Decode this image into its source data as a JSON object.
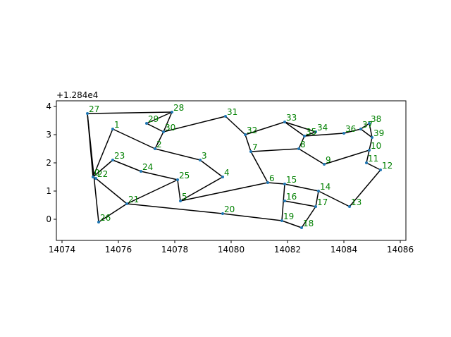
{
  "chart_data": {
    "type": "scatter",
    "title": "",
    "xlabel": "",
    "ylabel": "",
    "y_offset_label": "+1.284e4",
    "xlim": [
      14073.8,
      14086.2
    ],
    "ylim": [
      -0.75,
      4.2
    ],
    "x_ticks": [
      14074,
      14076,
      14078,
      14080,
      14082,
      14084,
      14086
    ],
    "y_ticks": [
      0,
      1,
      2,
      3,
      4
    ],
    "grid": false,
    "node_color": "#1f77b4",
    "label_color": "#008000",
    "edge_color": "#000000",
    "nodes": [
      {
        "id": "0",
        "x": 14075.1,
        "y": 1.5
      },
      {
        "id": "1",
        "x": 14075.8,
        "y": 3.2
      },
      {
        "id": "2",
        "x": 14077.3,
        "y": 2.5
      },
      {
        "id": "3",
        "x": 14078.9,
        "y": 2.1
      },
      {
        "id": "4",
        "x": 14079.7,
        "y": 1.5
      },
      {
        "id": "5",
        "x": 14078.2,
        "y": 0.65
      },
      {
        "id": "6",
        "x": 14081.3,
        "y": 1.3
      },
      {
        "id": "7",
        "x": 14080.7,
        "y": 2.4
      },
      {
        "id": "8",
        "x": 14082.4,
        "y": 2.5
      },
      {
        "id": "9",
        "x": 14083.3,
        "y": 1.95
      },
      {
        "id": "10",
        "x": 14084.9,
        "y": 2.45
      },
      {
        "id": "11",
        "x": 14084.8,
        "y": 2.0
      },
      {
        "id": "12",
        "x": 14085.3,
        "y": 1.75
      },
      {
        "id": "13",
        "x": 14084.2,
        "y": 0.45
      },
      {
        "id": "14",
        "x": 14083.1,
        "y": 1.0
      },
      {
        "id": "15",
        "x": 14081.9,
        "y": 1.25
      },
      {
        "id": "16",
        "x": 14081.9,
        "y": 0.65
      },
      {
        "id": "17",
        "x": 14083.0,
        "y": 0.45
      },
      {
        "id": "18",
        "x": 14082.5,
        "y": -0.3
      },
      {
        "id": "19",
        "x": 14081.8,
        "y": -0.05
      },
      {
        "id": "20",
        "x": 14079.7,
        "y": 0.2
      },
      {
        "id": "21",
        "x": 14076.3,
        "y": 0.55
      },
      {
        "id": "22",
        "x": 14075.2,
        "y": 1.45
      },
      {
        "id": "23",
        "x": 14075.8,
        "y": 2.1
      },
      {
        "id": "24",
        "x": 14076.8,
        "y": 1.7
      },
      {
        "id": "25",
        "x": 14078.1,
        "y": 1.4
      },
      {
        "id": "26",
        "x": 14075.3,
        "y": -0.1
      },
      {
        "id": "27",
        "x": 14074.9,
        "y": 3.75
      },
      {
        "id": "28",
        "x": 14077.9,
        "y": 3.8
      },
      {
        "id": "29",
        "x": 14077.0,
        "y": 3.4
      },
      {
        "id": "30",
        "x": 14077.6,
        "y": 3.1
      },
      {
        "id": "31",
        "x": 14079.8,
        "y": 3.65
      },
      {
        "id": "32",
        "x": 14080.5,
        "y": 3.0
      },
      {
        "id": "33",
        "x": 14081.9,
        "y": 3.45
      },
      {
        "id": "34",
        "x": 14083.0,
        "y": 3.1
      },
      {
        "id": "35",
        "x": 14082.6,
        "y": 2.95
      },
      {
        "id": "36",
        "x": 14084.0,
        "y": 3.05
      },
      {
        "id": "37",
        "x": 14084.6,
        "y": 3.2
      },
      {
        "id": "38",
        "x": 14084.9,
        "y": 3.4
      },
      {
        "id": "39",
        "x": 14085.0,
        "y": 2.9
      }
    ],
    "edges": [
      [
        "27",
        "28"
      ],
      [
        "27",
        "0"
      ],
      [
        "27",
        "26"
      ],
      [
        "28",
        "29"
      ],
      [
        "28",
        "30"
      ],
      [
        "29",
        "30"
      ],
      [
        "30",
        "2"
      ],
      [
        "1",
        "2"
      ],
      [
        "1",
        "0"
      ],
      [
        "2",
        "3"
      ],
      [
        "3",
        "4"
      ],
      [
        "4",
        "5"
      ],
      [
        "5",
        "25"
      ],
      [
        "5",
        "6"
      ],
      [
        "6",
        "7"
      ],
      [
        "7",
        "32"
      ],
      [
        "7",
        "8"
      ],
      [
        "32",
        "31"
      ],
      [
        "31",
        "30"
      ],
      [
        "32",
        "33"
      ],
      [
        "33",
        "35"
      ],
      [
        "33",
        "34"
      ],
      [
        "35",
        "34"
      ],
      [
        "35",
        "8"
      ],
      [
        "35",
        "36"
      ],
      [
        "36",
        "37"
      ],
      [
        "37",
        "38"
      ],
      [
        "38",
        "39"
      ],
      [
        "37",
        "39"
      ],
      [
        "39",
        "10"
      ],
      [
        "10",
        "9"
      ],
      [
        "9",
        "8"
      ],
      [
        "10",
        "11"
      ],
      [
        "11",
        "12"
      ],
      [
        "12",
        "13"
      ],
      [
        "13",
        "14"
      ],
      [
        "14",
        "15"
      ],
      [
        "14",
        "17"
      ],
      [
        "15",
        "6"
      ],
      [
        "15",
        "19"
      ],
      [
        "16",
        "17"
      ],
      [
        "17",
        "18"
      ],
      [
        "18",
        "19"
      ],
      [
        "19",
        "20"
      ],
      [
        "20",
        "21"
      ],
      [
        "21",
        "25"
      ],
      [
        "21",
        "26"
      ],
      [
        "25",
        "24"
      ],
      [
        "24",
        "23"
      ],
      [
        "23",
        "0"
      ],
      [
        "0",
        "22"
      ],
      [
        "22",
        "21"
      ]
    ]
  }
}
